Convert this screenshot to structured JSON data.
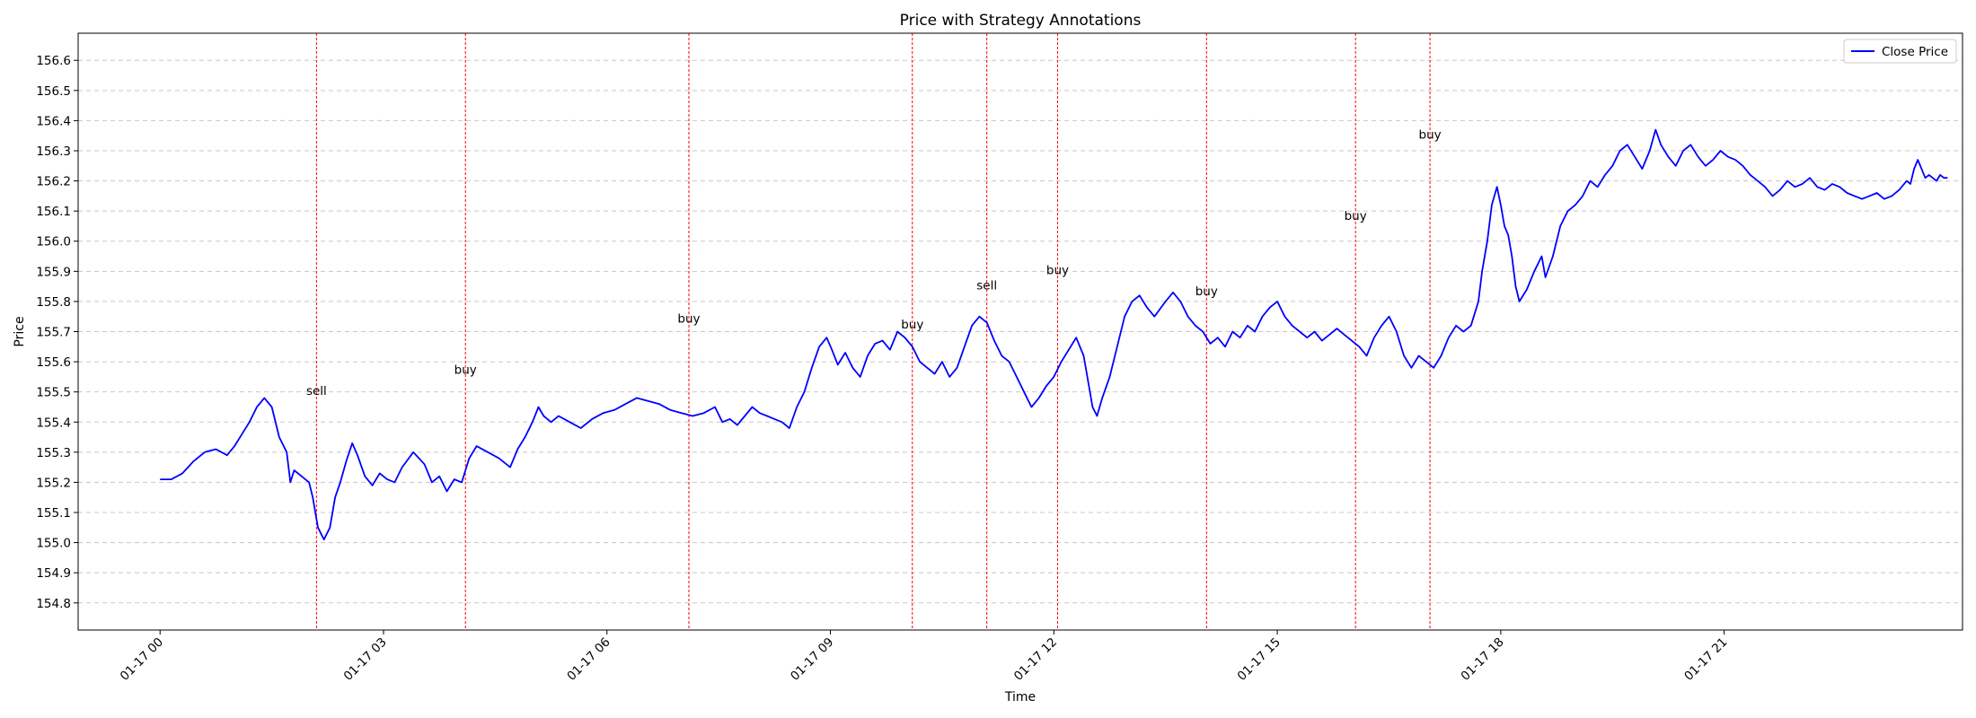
{
  "chart_data": {
    "type": "line",
    "title": "Price with Strategy Annotations",
    "xlabel": "Time",
    "ylabel": "Price",
    "xlim_hours": [
      -1.1,
      24.2
    ],
    "ylim": [
      154.71,
      156.69
    ],
    "x_ticks": [
      {
        "hour": 0,
        "label": "01-17 00"
      },
      {
        "hour": 3,
        "label": "01-17 03"
      },
      {
        "hour": 6,
        "label": "01-17 06"
      },
      {
        "hour": 9,
        "label": "01-17 09"
      },
      {
        "hour": 12,
        "label": "01-17 12"
      },
      {
        "hour": 15,
        "label": "01-17 15"
      },
      {
        "hour": 18,
        "label": "01-17 18"
      },
      {
        "hour": 21,
        "label": "01-17 21"
      }
    ],
    "y_ticks": [
      154.8,
      154.9,
      155.0,
      155.1,
      155.2,
      155.3,
      155.4,
      155.5,
      155.6,
      155.7,
      155.8,
      155.9,
      156.0,
      156.1,
      156.2,
      156.3,
      156.4,
      156.5,
      156.6
    ],
    "grid": "y-dashed",
    "legend_position": "top-right",
    "series": [
      {
        "name": "Close Price",
        "color": "#0000ff",
        "points": [
          [
            0.0,
            155.21
          ],
          [
            0.15,
            155.21
          ],
          [
            0.3,
            155.23
          ],
          [
            0.45,
            155.27
          ],
          [
            0.6,
            155.3
          ],
          [
            0.75,
            155.31
          ],
          [
            0.9,
            155.29
          ],
          [
            1.0,
            155.32
          ],
          [
            1.1,
            155.36
          ],
          [
            1.2,
            155.4
          ],
          [
            1.3,
            155.45
          ],
          [
            1.4,
            155.48
          ],
          [
            1.5,
            155.45
          ],
          [
            1.6,
            155.35
          ],
          [
            1.7,
            155.3
          ],
          [
            1.75,
            155.2
          ],
          [
            1.8,
            155.24
          ],
          [
            1.9,
            155.22
          ],
          [
            2.0,
            155.2
          ],
          [
            2.05,
            155.15
          ],
          [
            2.12,
            155.05
          ],
          [
            2.2,
            155.01
          ],
          [
            2.28,
            155.05
          ],
          [
            2.35,
            155.15
          ],
          [
            2.42,
            155.2
          ],
          [
            2.5,
            155.27
          ],
          [
            2.58,
            155.33
          ],
          [
            2.65,
            155.29
          ],
          [
            2.75,
            155.22
          ],
          [
            2.85,
            155.19
          ],
          [
            2.95,
            155.23
          ],
          [
            3.05,
            155.21
          ],
          [
            3.15,
            155.2
          ],
          [
            3.25,
            155.25
          ],
          [
            3.4,
            155.3
          ],
          [
            3.55,
            155.26
          ],
          [
            3.65,
            155.2
          ],
          [
            3.75,
            155.22
          ],
          [
            3.85,
            155.17
          ],
          [
            3.95,
            155.21
          ],
          [
            4.05,
            155.2
          ],
          [
            4.15,
            155.28
          ],
          [
            4.25,
            155.32
          ],
          [
            4.4,
            155.3
          ],
          [
            4.55,
            155.28
          ],
          [
            4.7,
            155.25
          ],
          [
            4.8,
            155.31
          ],
          [
            4.9,
            155.35
          ],
          [
            5.0,
            155.4
          ],
          [
            5.08,
            155.45
          ],
          [
            5.15,
            155.42
          ],
          [
            5.25,
            155.4
          ],
          [
            5.35,
            155.42
          ],
          [
            5.5,
            155.4
          ],
          [
            5.65,
            155.38
          ],
          [
            5.8,
            155.41
          ],
          [
            5.95,
            155.43
          ],
          [
            6.1,
            155.44
          ],
          [
            6.25,
            155.46
          ],
          [
            6.4,
            155.48
          ],
          [
            6.55,
            155.47
          ],
          [
            6.7,
            155.46
          ],
          [
            6.85,
            155.44
          ],
          [
            7.0,
            155.43
          ],
          [
            7.15,
            155.42
          ],
          [
            7.3,
            155.43
          ],
          [
            7.45,
            155.45
          ],
          [
            7.55,
            155.4
          ],
          [
            7.65,
            155.41
          ],
          [
            7.75,
            155.39
          ],
          [
            7.85,
            155.42
          ],
          [
            7.95,
            155.45
          ],
          [
            8.05,
            155.43
          ],
          [
            8.15,
            155.42
          ],
          [
            8.25,
            155.41
          ],
          [
            8.35,
            155.4
          ],
          [
            8.45,
            155.38
          ],
          [
            8.55,
            155.45
          ],
          [
            8.65,
            155.5
          ],
          [
            8.75,
            155.58
          ],
          [
            8.85,
            155.65
          ],
          [
            8.95,
            155.68
          ],
          [
            9.02,
            155.64
          ],
          [
            9.1,
            155.59
          ],
          [
            9.2,
            155.63
          ],
          [
            9.3,
            155.58
          ],
          [
            9.4,
            155.55
          ],
          [
            9.5,
            155.62
          ],
          [
            9.6,
            155.66
          ],
          [
            9.7,
            155.67
          ],
          [
            9.8,
            155.64
          ],
          [
            9.9,
            155.7
          ],
          [
            10.0,
            155.68
          ],
          [
            10.1,
            155.65
          ],
          [
            10.2,
            155.6
          ],
          [
            10.3,
            155.58
          ],
          [
            10.4,
            155.56
          ],
          [
            10.5,
            155.6
          ],
          [
            10.6,
            155.55
          ],
          [
            10.7,
            155.58
          ],
          [
            10.8,
            155.65
          ],
          [
            10.9,
            155.72
          ],
          [
            11.0,
            155.75
          ],
          [
            11.1,
            155.73
          ],
          [
            11.2,
            155.67
          ],
          [
            11.3,
            155.62
          ],
          [
            11.4,
            155.6
          ],
          [
            11.5,
            155.55
          ],
          [
            11.6,
            155.5
          ],
          [
            11.7,
            155.45
          ],
          [
            11.8,
            155.48
          ],
          [
            11.9,
            155.52
          ],
          [
            12.0,
            155.55
          ],
          [
            12.1,
            155.6
          ],
          [
            12.2,
            155.64
          ],
          [
            12.3,
            155.68
          ],
          [
            12.4,
            155.62
          ],
          [
            12.45,
            155.55
          ],
          [
            12.52,
            155.45
          ],
          [
            12.58,
            155.42
          ],
          [
            12.65,
            155.48
          ],
          [
            12.75,
            155.55
          ],
          [
            12.85,
            155.65
          ],
          [
            12.95,
            155.75
          ],
          [
            13.05,
            155.8
          ],
          [
            13.15,
            155.82
          ],
          [
            13.25,
            155.78
          ],
          [
            13.35,
            155.75
          ],
          [
            13.5,
            155.8
          ],
          [
            13.6,
            155.83
          ],
          [
            13.7,
            155.8
          ],
          [
            13.8,
            155.75
          ],
          [
            13.9,
            155.72
          ],
          [
            14.0,
            155.7
          ],
          [
            14.1,
            155.66
          ],
          [
            14.2,
            155.68
          ],
          [
            14.3,
            155.65
          ],
          [
            14.4,
            155.7
          ],
          [
            14.5,
            155.68
          ],
          [
            14.6,
            155.72
          ],
          [
            14.7,
            155.7
          ],
          [
            14.8,
            155.75
          ],
          [
            14.9,
            155.78
          ],
          [
            15.0,
            155.8
          ],
          [
            15.1,
            155.75
          ],
          [
            15.2,
            155.72
          ],
          [
            15.3,
            155.7
          ],
          [
            15.4,
            155.68
          ],
          [
            15.5,
            155.7
          ],
          [
            15.6,
            155.67
          ],
          [
            15.7,
            155.69
          ],
          [
            15.8,
            155.71
          ],
          [
            15.9,
            155.69
          ],
          [
            16.0,
            155.67
          ],
          [
            16.1,
            155.65
          ],
          [
            16.2,
            155.62
          ],
          [
            16.3,
            155.68
          ],
          [
            16.4,
            155.72
          ],
          [
            16.5,
            155.75
          ],
          [
            16.6,
            155.7
          ],
          [
            16.7,
            155.62
          ],
          [
            16.8,
            155.58
          ],
          [
            16.9,
            155.62
          ],
          [
            17.0,
            155.6
          ],
          [
            17.1,
            155.58
          ],
          [
            17.2,
            155.62
          ],
          [
            17.3,
            155.68
          ],
          [
            17.4,
            155.72
          ],
          [
            17.5,
            155.7
          ],
          [
            17.6,
            155.72
          ],
          [
            17.7,
            155.8
          ],
          [
            17.75,
            155.9
          ],
          [
            17.82,
            156.0
          ],
          [
            17.88,
            156.12
          ],
          [
            17.95,
            156.18
          ],
          [
            18.0,
            156.12
          ],
          [
            18.05,
            156.05
          ],
          [
            18.1,
            156.02
          ],
          [
            18.15,
            155.95
          ],
          [
            18.2,
            155.85
          ],
          [
            18.25,
            155.8
          ],
          [
            18.35,
            155.84
          ],
          [
            18.45,
            155.9
          ],
          [
            18.55,
            155.95
          ],
          [
            18.6,
            155.88
          ],
          [
            18.7,
            155.95
          ],
          [
            18.8,
            156.05
          ],
          [
            18.9,
            156.1
          ],
          [
            19.0,
            156.12
          ],
          [
            19.1,
            156.15
          ],
          [
            19.2,
            156.2
          ],
          [
            19.3,
            156.18
          ],
          [
            19.4,
            156.22
          ],
          [
            19.5,
            156.25
          ],
          [
            19.6,
            156.3
          ],
          [
            19.7,
            156.32
          ],
          [
            19.8,
            156.28
          ],
          [
            19.9,
            156.24
          ],
          [
            20.0,
            156.3
          ],
          [
            20.08,
            156.37
          ],
          [
            20.15,
            156.32
          ],
          [
            20.25,
            156.28
          ],
          [
            20.35,
            156.25
          ],
          [
            20.45,
            156.3
          ],
          [
            20.55,
            156.32
          ],
          [
            20.65,
            156.28
          ],
          [
            20.75,
            156.25
          ],
          [
            20.85,
            156.27
          ],
          [
            20.95,
            156.3
          ],
          [
            21.05,
            156.28
          ],
          [
            21.15,
            156.27
          ],
          [
            21.25,
            156.25
          ],
          [
            21.35,
            156.22
          ],
          [
            21.45,
            156.2
          ],
          [
            21.55,
            156.18
          ],
          [
            21.65,
            156.15
          ],
          [
            21.75,
            156.17
          ],
          [
            21.85,
            156.2
          ],
          [
            21.95,
            156.18
          ],
          [
            22.05,
            156.19
          ],
          [
            22.15,
            156.21
          ],
          [
            22.25,
            156.18
          ],
          [
            22.35,
            156.17
          ],
          [
            22.45,
            156.19
          ],
          [
            22.55,
            156.18
          ],
          [
            22.65,
            156.16
          ],
          [
            22.75,
            156.15
          ],
          [
            22.85,
            156.14
          ],
          [
            22.95,
            156.15
          ],
          [
            23.05,
            156.16
          ],
          [
            23.15,
            156.14
          ],
          [
            23.25,
            156.15
          ],
          [
            23.35,
            156.17
          ],
          [
            23.45,
            156.2
          ],
          [
            23.5,
            156.19
          ],
          [
            23.55,
            156.24
          ],
          [
            23.6,
            156.27
          ],
          [
            23.65,
            156.24
          ],
          [
            23.7,
            156.21
          ],
          [
            23.75,
            156.22
          ],
          [
            23.8,
            156.21
          ],
          [
            23.85,
            156.2
          ],
          [
            23.9,
            156.22
          ],
          [
            23.95,
            156.21
          ],
          [
            24.0,
            156.21
          ]
        ]
      }
    ],
    "signals": [
      {
        "hour": 2.1,
        "label": "sell",
        "label_y": 155.49
      },
      {
        "hour": 4.1,
        "label": "buy",
        "label_y": 155.56
      },
      {
        "hour": 7.1,
        "label": "buy",
        "label_y": 155.73
      },
      {
        "hour": 10.1,
        "label": "buy",
        "label_y": 155.71
      },
      {
        "hour": 11.1,
        "label": "sell",
        "label_y": 155.84
      },
      {
        "hour": 12.05,
        "label": "buy",
        "label_y": 155.89
      },
      {
        "hour": 14.05,
        "label": "buy",
        "label_y": 155.82
      },
      {
        "hour": 16.05,
        "label": "buy",
        "label_y": 156.07
      },
      {
        "hour": 17.05,
        "label": "buy",
        "label_y": 156.34
      }
    ],
    "signal_line_color": "#ff0000",
    "grid_color": "#c8c8c8"
  }
}
